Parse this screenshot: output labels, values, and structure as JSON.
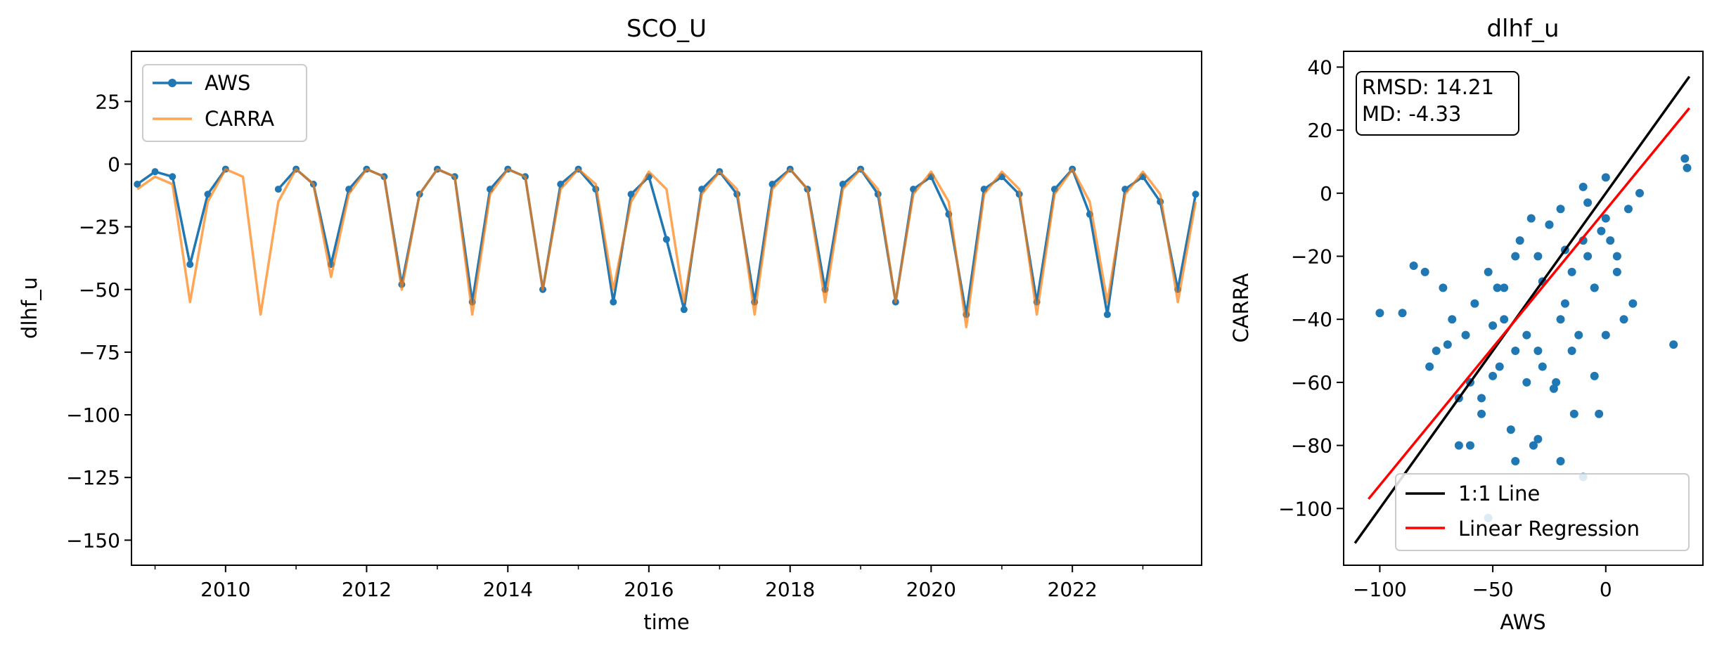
{
  "chart_data": [
    {
      "type": "line",
      "title": "SCO_U",
      "xlabel": "time",
      "ylabel": "dlhf_u",
      "xlim": [
        "2008-09-01",
        "2023-11-01"
      ],
      "ylim": [
        -160,
        45
      ],
      "x_ticks": [
        "2010",
        "2012",
        "2014",
        "2016",
        "2018",
        "2020",
        "2022"
      ],
      "y_ticks": [
        25,
        0,
        -25,
        -50,
        -75,
        -100,
        -125,
        -150
      ],
      "legend": {
        "location": "upper left",
        "entries": [
          "AWS",
          "CARRA"
        ]
      },
      "series": [
        {
          "name": "AWS",
          "style": "line with circle markers",
          "color": "#1f77b4",
          "x": [
            "2008-10-01",
            "2009-01-01",
            "2009-04-01",
            "2009-07-01",
            "2009-10-01",
            "2010-01-01",
            "2010-04-01",
            "2010-07-01",
            "2010-10-01",
            "2011-01-01",
            "2011-04-01",
            "2011-07-01",
            "2011-10-01",
            "2012-01-01",
            "2012-04-01",
            "2012-07-01",
            "2012-10-01",
            "2013-01-01",
            "2013-04-01",
            "2013-07-01",
            "2013-10-01",
            "2014-01-01",
            "2014-04-01",
            "2014-07-01",
            "2014-10-01",
            "2015-01-01",
            "2015-04-01",
            "2015-07-01",
            "2015-10-01",
            "2016-01-01",
            "2016-04-01",
            "2016-07-01",
            "2016-10-01",
            "2017-01-01",
            "2017-04-01",
            "2017-07-01",
            "2017-10-01",
            "2018-01-01",
            "2018-04-01",
            "2018-07-01",
            "2018-10-01",
            "2019-01-01",
            "2019-04-01",
            "2019-07-01",
            "2019-10-01",
            "2020-01-01",
            "2020-04-01",
            "2020-07-01",
            "2020-10-01",
            "2021-01-01",
            "2021-04-01",
            "2021-07-01",
            "2021-10-01",
            "2022-01-01",
            "2022-04-01",
            "2022-07-01",
            "2022-10-01",
            "2023-01-01",
            "2023-04-01",
            "2023-07-01",
            "2023-10-01"
          ],
          "values": [
            -8,
            -3,
            -5,
            -40,
            -12,
            -2,
            null,
            null,
            -10,
            -2,
            -8,
            -40,
            -10,
            -2,
            -5,
            -48,
            -12,
            -2,
            -5,
            -55,
            -10,
            -2,
            -5,
            -50,
            -8,
            -2,
            -10,
            -55,
            -12,
            -5,
            -30,
            -58,
            -10,
            -3,
            -12,
            -55,
            -8,
            -2,
            -10,
            -50,
            -8,
            -2,
            -12,
            -55,
            -10,
            -5,
            -20,
            -60,
            -10,
            -5,
            -12,
            -55,
            -10,
            -2,
            -20,
            -60,
            -10,
            -5,
            -15,
            -50,
            -12
          ]
        },
        {
          "name": "CARRA",
          "style": "line",
          "color": "#ff7f0e",
          "x": [
            "2008-10-01",
            "2009-01-01",
            "2009-04-01",
            "2009-07-01",
            "2009-10-01",
            "2010-01-01",
            "2010-04-01",
            "2010-07-01",
            "2010-10-01",
            "2011-01-01",
            "2011-04-01",
            "2011-07-01",
            "2011-10-01",
            "2012-01-01",
            "2012-04-01",
            "2012-07-01",
            "2012-10-01",
            "2013-01-01",
            "2013-04-01",
            "2013-07-01",
            "2013-10-01",
            "2014-01-01",
            "2014-04-01",
            "2014-07-01",
            "2014-10-01",
            "2015-01-01",
            "2015-04-01",
            "2015-07-01",
            "2015-10-01",
            "2016-01-01",
            "2016-04-01",
            "2016-07-01",
            "2016-10-01",
            "2017-01-01",
            "2017-04-01",
            "2017-07-01",
            "2017-10-01",
            "2018-01-01",
            "2018-04-01",
            "2018-07-01",
            "2018-10-01",
            "2019-01-01",
            "2019-04-01",
            "2019-07-01",
            "2019-10-01",
            "2020-01-01",
            "2020-04-01",
            "2020-07-01",
            "2020-10-01",
            "2021-01-01",
            "2021-04-01",
            "2021-07-01",
            "2021-10-01",
            "2022-01-01",
            "2022-04-01",
            "2022-07-01",
            "2022-10-01",
            "2023-01-01",
            "2023-04-01",
            "2023-07-01",
            "2023-10-01"
          ],
          "values": [
            -10,
            -5,
            -8,
            -55,
            -15,
            -2,
            -5,
            -60,
            -15,
            -2,
            -8,
            -45,
            -12,
            -2,
            -5,
            -50,
            -12,
            -2,
            -5,
            -60,
            -12,
            -2,
            -5,
            -50,
            -10,
            -2,
            -8,
            -50,
            -15,
            -3,
            -10,
            -55,
            -12,
            -3,
            -10,
            -60,
            -10,
            -2,
            -10,
            -55,
            -10,
            -2,
            -10,
            -55,
            -12,
            -3,
            -15,
            -65,
            -12,
            -3,
            -10,
            -60,
            -12,
            -2,
            -15,
            -55,
            -12,
            -3,
            -12,
            -55,
            -15
          ]
        }
      ]
    },
    {
      "type": "scatter",
      "title": "dlhf_u",
      "xlabel": "AWS",
      "ylabel": "CARRA",
      "xlim": [
        -116,
        43
      ],
      "ylim": [
        -118,
        45
      ],
      "x_ticks": [
        -100,
        -50,
        0
      ],
      "y_ticks": [
        40,
        20,
        0,
        -20,
        -40,
        -60,
        -80,
        -100
      ],
      "annotation": [
        "RMSD: 14.21",
        "MD: -4.33"
      ],
      "legend": {
        "location": "lower right",
        "entries": [
          "1:1 Line",
          "Linear Regression"
        ]
      },
      "lines": [
        {
          "name": "1:1 Line",
          "color": "#000000",
          "x": [
            -111,
            37
          ],
          "y": [
            -111,
            37
          ]
        },
        {
          "name": "Linear Regression",
          "color": "#ff0000",
          "x": [
            -105,
            37
          ],
          "y": [
            -97,
            27
          ]
        }
      ],
      "points": {
        "color": "#1f77b4",
        "x": [
          -100,
          -90,
          -85,
          -80,
          -78,
          -75,
          -72,
          -70,
          -68,
          -65,
          -62,
          -60,
          -58,
          -55,
          -52,
          -50,
          -48,
          -45,
          -42,
          -40,
          -38,
          -35,
          -32,
          -30,
          -28,
          -25,
          -22,
          -20,
          -18,
          -15,
          -12,
          -10,
          -8,
          -5,
          -3,
          0,
          2,
          5,
          8,
          10,
          12,
          15,
          -60,
          -55,
          -50,
          -45,
          -40,
          -35,
          -30,
          -25,
          -20,
          -15,
          -10,
          -5,
          0,
          5,
          -52,
          -40,
          -30,
          -20,
          -10,
          0,
          35,
          36,
          30,
          -65,
          -47,
          -23,
          -14,
          -5,
          -33,
          -28,
          -18,
          -8,
          -2
        ],
        "y": [
          -38,
          -38,
          -23,
          -25,
          -55,
          -50,
          -30,
          -48,
          -40,
          -65,
          -45,
          -60,
          -35,
          -70,
          -25,
          -58,
          -30,
          -40,
          -75,
          -50,
          -15,
          -45,
          -80,
          -20,
          -55,
          -10,
          -60,
          -5,
          -35,
          -50,
          -45,
          2,
          -20,
          -30,
          -70,
          5,
          -15,
          -25,
          -40,
          -5,
          -35,
          0,
          -80,
          -65,
          -42,
          -30,
          -20,
          -60,
          -50,
          -10,
          -40,
          -25,
          -15,
          -30,
          -8,
          -20,
          -103,
          -85,
          -78,
          -85,
          -90,
          -45,
          11,
          8,
          -48,
          -80,
          -55,
          -62,
          -70,
          -58,
          -8,
          -28,
          -18,
          -3,
          -12
        ]
      }
    }
  ]
}
